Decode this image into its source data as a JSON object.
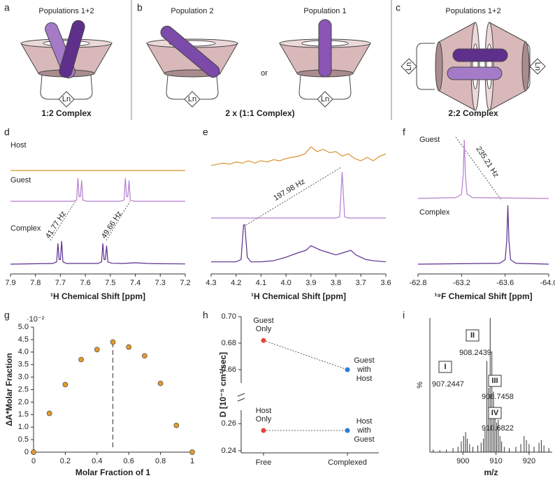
{
  "figure": {
    "panel_labels": [
      "a",
      "b",
      "c",
      "d",
      "e",
      "f",
      "g",
      "h",
      "i"
    ]
  },
  "diagram": {
    "a": {
      "title": "Populations 1+2",
      "caption": "1:2 Complex",
      "ln": "Ln"
    },
    "b": {
      "titles": [
        "Population 2",
        "Population 1"
      ],
      "or": "or",
      "caption": "2 x (1:1 Complex)",
      "ln": "Ln"
    },
    "c": {
      "title": "Populations 1+2",
      "caption": "2:2 Complex",
      "ln": "Ln"
    }
  },
  "chart_data": [
    {
      "type": "spectrum",
      "x_label": "¹H Chemical Shift [ppm]",
      "xlim": [
        7.9,
        7.2
      ],
      "xticks": [
        7.9,
        7.8,
        7.7,
        7.6,
        7.5,
        7.4,
        7.3,
        7.2
      ],
      "annotations": [
        "41.77 Hz",
        "49.66 Hz"
      ],
      "series": [
        {
          "name": "Host",
          "color": "#d9902e",
          "x": [
            7.9,
            7.2
          ],
          "values": [
            0,
            0
          ]
        },
        {
          "name": "Guest",
          "color": "#b57ed0",
          "x": [
            7.9,
            7.65,
            7.635,
            7.63,
            7.625,
            7.62,
            7.615,
            7.61,
            7.595,
            7.46,
            7.445,
            7.44,
            7.435,
            7.43,
            7.425,
            7.42,
            7.405,
            7.2
          ],
          "values": [
            0,
            0,
            0.5,
            10,
            2,
            2,
            9,
            0.5,
            0,
            0,
            0.5,
            10,
            2,
            2,
            9,
            0.5,
            0,
            0
          ]
        },
        {
          "name": "Complex",
          "color": "#5b2d8e",
          "x": [
            7.9,
            7.73,
            7.715,
            7.71,
            7.705,
            7.7,
            7.695,
            7.69,
            7.675,
            7.55,
            7.535,
            7.53,
            7.525,
            7.52,
            7.515,
            7.51,
            7.495,
            7.45,
            7.4,
            7.35,
            7.3,
            7.2
          ],
          "values": [
            0,
            0.3,
            1,
            9,
            2,
            2,
            10,
            1,
            0.3,
            0.3,
            1,
            9,
            2,
            2,
            8,
            1,
            0.4,
            0.3,
            0.6,
            0.3,
            0.2,
            0.1
          ]
        }
      ]
    },
    {
      "type": "spectrum",
      "x_label": "¹H Chemical Shift [ppm]",
      "xlim": [
        4.3,
        3.6
      ],
      "xticks": [
        4.3,
        4.2,
        4.1,
        {
          "value": 4,
          "label": "4.0"
        },
        3.9,
        3.8,
        3.7,
        3.6
      ],
      "annotations": [
        "197.98 Hz"
      ],
      "series": [
        {
          "color": "#d9902e",
          "x": [
            4.3,
            4.275,
            4.25,
            4.225,
            4.2,
            4.175,
            4.15,
            4.125,
            4.1,
            4.075,
            4.05,
            4.025,
            4.0,
            3.975,
            3.95,
            3.925,
            3.9,
            3.875,
            3.85,
            3.825,
            3.8,
            3.775,
            3.75,
            3.725,
            3.7,
            3.675,
            3.65,
            3.625,
            3.6
          ],
          "values": [
            1,
            1.5,
            2,
            1.5,
            2.5,
            2,
            3,
            2,
            3,
            2.5,
            3.5,
            3,
            4,
            4.5,
            5,
            6,
            9,
            7,
            8,
            6.5,
            7,
            5,
            6,
            4,
            3,
            4.5,
            3,
            5,
            6
          ]
        },
        {
          "color": "#b57ed0",
          "x": [
            4.3,
            3.8,
            3.785,
            3.78,
            3.775,
            3.77,
            3.765,
            3.75,
            3.6
          ],
          "values": [
            0,
            0,
            0.5,
            10,
            20,
            10,
            0.5,
            0,
            0
          ]
        },
        {
          "color": "#5b2d8e",
          "x": [
            4.3,
            4.2,
            4.18,
            4.17,
            4.165,
            4.155,
            4.14,
            4.1,
            4.05,
            4.0,
            3.95,
            3.92,
            3.9,
            3.88,
            3.86,
            3.83,
            3.8,
            3.77,
            3.74,
            3.72,
            3.7,
            3.68,
            3.65,
            3.6
          ],
          "values": [
            1,
            1,
            2,
            17,
            17,
            3,
            1,
            1,
            1.5,
            3,
            5,
            6,
            8,
            7,
            6,
            5,
            4,
            5,
            6,
            4,
            3,
            2,
            1.5,
            1
          ]
        }
      ]
    },
    {
      "type": "spectrum",
      "x_label": "¹⁹F Chemical Shift [ppm]",
      "xlim": [
        -62.8,
        -64
      ],
      "xticks": [
        -62.8,
        -63.2,
        -63.6,
        {
          "value": -64,
          "label": "-64.0"
        }
      ],
      "annotations": [
        "235.21 Hz"
      ],
      "series": [
        {
          "name": "Guest",
          "color": "#b57ed0",
          "x": [
            -62.8,
            -63.15,
            -63.2,
            -63.215,
            -63.225,
            -63.235,
            -63.25,
            -63.3,
            -64
          ],
          "values": [
            0,
            0.3,
            1.5,
            8,
            20,
            8,
            1.5,
            0.3,
            0
          ]
        },
        {
          "name": "Complex",
          "color": "#5b2d8e",
          "x": [
            -62.8,
            -63.55,
            -63.6,
            -63.615,
            -63.625,
            -63.635,
            -63.65,
            -63.7,
            -64
          ],
          "values": [
            0,
            0.3,
            1.5,
            8,
            20,
            8,
            1.5,
            0.3,
            0
          ]
        }
      ]
    },
    {
      "type": "scatter",
      "y_label": "ΔA*Molar Fraction",
      "y_multiplier": "·10⁻²",
      "x_label": "Molar Fraction of 1",
      "xlim": [
        0,
        1
      ],
      "ylim": [
        0,
        5
      ],
      "xticks": [
        0,
        0.2,
        0.4,
        0.6,
        0.8,
        1
      ],
      "yticks": [
        0,
        0.5,
        {
          "value": 1,
          "label": "1.0"
        },
        1.5,
        {
          "value": 2,
          "label": "2.0"
        },
        2.5,
        {
          "value": 3,
          "label": "3.0"
        },
        3.5,
        {
          "value": 4,
          "label": "4.0"
        },
        4.5,
        {
          "value": 5,
          "label": "5.0"
        }
      ],
      "x": [
        0,
        0.1,
        0.2,
        0.3,
        0.4,
        0.5,
        0.6,
        0.7,
        0.8,
        0.9,
        1
      ],
      "values": [
        0,
        1.55,
        2.7,
        3.7,
        4.1,
        4.4,
        4.2,
        3.85,
        2.75,
        1.07,
        0
      ],
      "color": "#e39a2e",
      "vline": 0.5
    },
    {
      "type": "broken_dot_line",
      "y_label": "D [10⁻⁵ cm²/sec]",
      "categories": [
        "Free",
        "Complexed"
      ],
      "ylim_segments": [
        [
          0.24,
          0.27
        ],
        [
          0.65,
          0.7
        ]
      ],
      "yticks": [
        0.24,
        0.26,
        0.66,
        0.68,
        {
          "value": 0.7,
          "label": "0.70"
        }
      ],
      "category_colors": [
        "#e8413c",
        "#2e7bd6"
      ],
      "series": [
        {
          "values": [
            0.682,
            0.66
          ],
          "point_labels": [
            [
              "Guest",
              "Only"
            ],
            [
              "Guest",
              "with",
              "Host"
            ]
          ]
        },
        {
          "values": [
            0.255,
            0.255
          ],
          "point_labels": [
            [
              "Host",
              "Only"
            ],
            [
              "Host",
              "with",
              "Guest"
            ]
          ]
        }
      ]
    },
    {
      "type": "stick",
      "y_label": "%",
      "x_label": "m/z",
      "xlim": [
        890,
        927
      ],
      "ylim": [
        0,
        100
      ],
      "xticks": [
        900,
        910,
        920
      ],
      "color": "#333333",
      "x": [
        891,
        893,
        895,
        897,
        898.5,
        899.5,
        900.2,
        900.8,
        901.3,
        902,
        903,
        904.5,
        905.5,
        906.2,
        906.7,
        907.24,
        907.75,
        908.24,
        908.75,
        909.25,
        909.7,
        910.2,
        910.68,
        911.2,
        911.7,
        912.5,
        914,
        916,
        917.5,
        918.5,
        919.2,
        920,
        921.5,
        923,
        923.7,
        924.5,
        926
      ],
      "values": [
        2,
        1.5,
        2,
        3,
        4,
        8,
        12,
        15,
        10,
        6,
        4,
        5,
        7,
        10,
        18,
        68,
        48,
        100,
        75,
        45,
        28,
        22,
        24,
        12,
        8,
        4,
        3,
        4,
        6,
        12,
        9,
        6,
        4,
        7,
        9,
        5,
        3
      ],
      "annotations": [
        {
          "label": "I",
          "mz": 907.2447
        },
        {
          "label": "II",
          "mz": 908.2439
        },
        {
          "label": "III",
          "mz": 908.7458
        },
        {
          "label": "IV",
          "mz": 910.6822
        }
      ]
    }
  ]
}
